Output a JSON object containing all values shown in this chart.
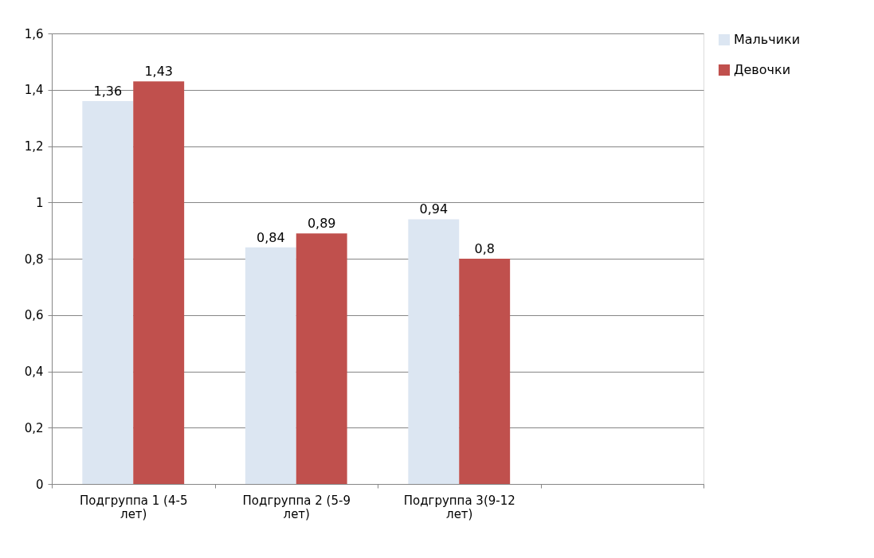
{
  "chart_data": {
    "type": "bar",
    "categories": [
      "Подгруппа 1 (4-5 лет)",
      "Подгруппа 2 (5-9 лет)",
      "Подгруппа 3(9-12 лет)",
      null
    ],
    "series": [
      {
        "name": "Мальчики",
        "color": "#dce6f2",
        "values": [
          1.36,
          0.84,
          0.94,
          null
        ],
        "value_labels": [
          "1,36",
          "0,84",
          "0,94",
          null
        ]
      },
      {
        "name": "Девочки",
        "color": "#c0504d",
        "values": [
          1.43,
          0.89,
          0.8,
          null
        ],
        "value_labels": [
          "1,43",
          "0,89",
          "0,8",
          null
        ]
      }
    ],
    "ylim": [
      0,
      1.6
    ],
    "yticks": [
      0,
      {
        "value": 0.2,
        "label": "0,2"
      },
      {
        "value": 0.4,
        "label": "0,4"
      },
      {
        "value": 0.6,
        "label": "0,6"
      },
      {
        "value": 0.8,
        "label": "0,8"
      },
      1,
      {
        "value": 1.2,
        "label": "1,2"
      },
      {
        "value": 1.4,
        "label": "1,4"
      },
      {
        "value": 1.6,
        "label": "1,6"
      }
    ],
    "grid": "y",
    "legend": "right"
  }
}
